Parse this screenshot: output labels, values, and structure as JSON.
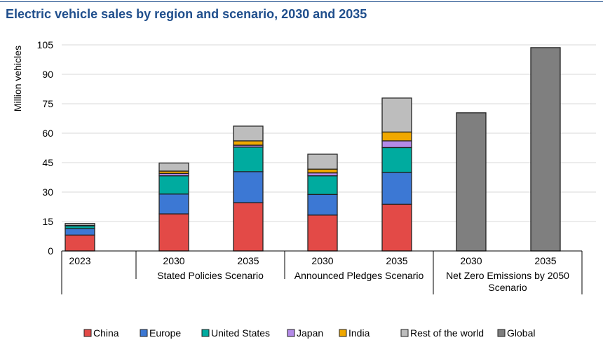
{
  "chart_data": {
    "type": "bar",
    "stacked": true,
    "title": "Electric vehicle sales by region and scenario, 2030 and 2035",
    "ylabel": "Million vehicles",
    "ylim": [
      0,
      105
    ],
    "yticks": [
      0,
      15,
      30,
      45,
      60,
      75,
      90,
      105
    ],
    "grid": true,
    "legend_position": "bottom",
    "categories": [
      "2023",
      "2030",
      "2035",
      "2030",
      "2035",
      "2030",
      "2035"
    ],
    "groups": [
      {
        "label": "",
        "span": [
          0,
          0
        ]
      },
      {
        "label": "Stated Policies Scenario",
        "span": [
          1,
          2
        ]
      },
      {
        "label": "Announced Pledges Scenario",
        "span": [
          3,
          4
        ]
      },
      {
        "label": "Net Zero Emissions by 2050 Scenario",
        "span": [
          5,
          6
        ]
      }
    ],
    "series": [
      {
        "name": "China",
        "color": "#e34a47",
        "values": [
          8.1,
          18.9,
          24.6,
          18.3,
          23.8,
          0,
          0
        ]
      },
      {
        "name": "Europe",
        "color": "#3c78d4",
        "values": [
          3.3,
          10.1,
          15.8,
          10.5,
          16.2,
          0,
          0
        ]
      },
      {
        "name": "United States",
        "color": "#00ab9f",
        "values": [
          1.4,
          9.3,
          12.5,
          9.5,
          12.7,
          0,
          0
        ]
      },
      {
        "name": "Japan",
        "color": "#b48ae8",
        "values": [
          0.1,
          1.2,
          1.0,
          1.5,
          3.4,
          0,
          0
        ]
      },
      {
        "name": "India",
        "color": "#f0a800",
        "values": [
          0.1,
          1.2,
          2.2,
          1.9,
          4.5,
          0,
          0
        ]
      },
      {
        "name": "Rest of the world",
        "color": "#bdbdbd",
        "values": [
          1.0,
          4.1,
          7.5,
          7.6,
          17.3,
          0,
          0
        ]
      },
      {
        "name": "Global",
        "color": "#7f7f7f",
        "values": [
          0,
          0,
          0,
          0,
          0,
          70.4,
          103.6
        ]
      }
    ]
  }
}
